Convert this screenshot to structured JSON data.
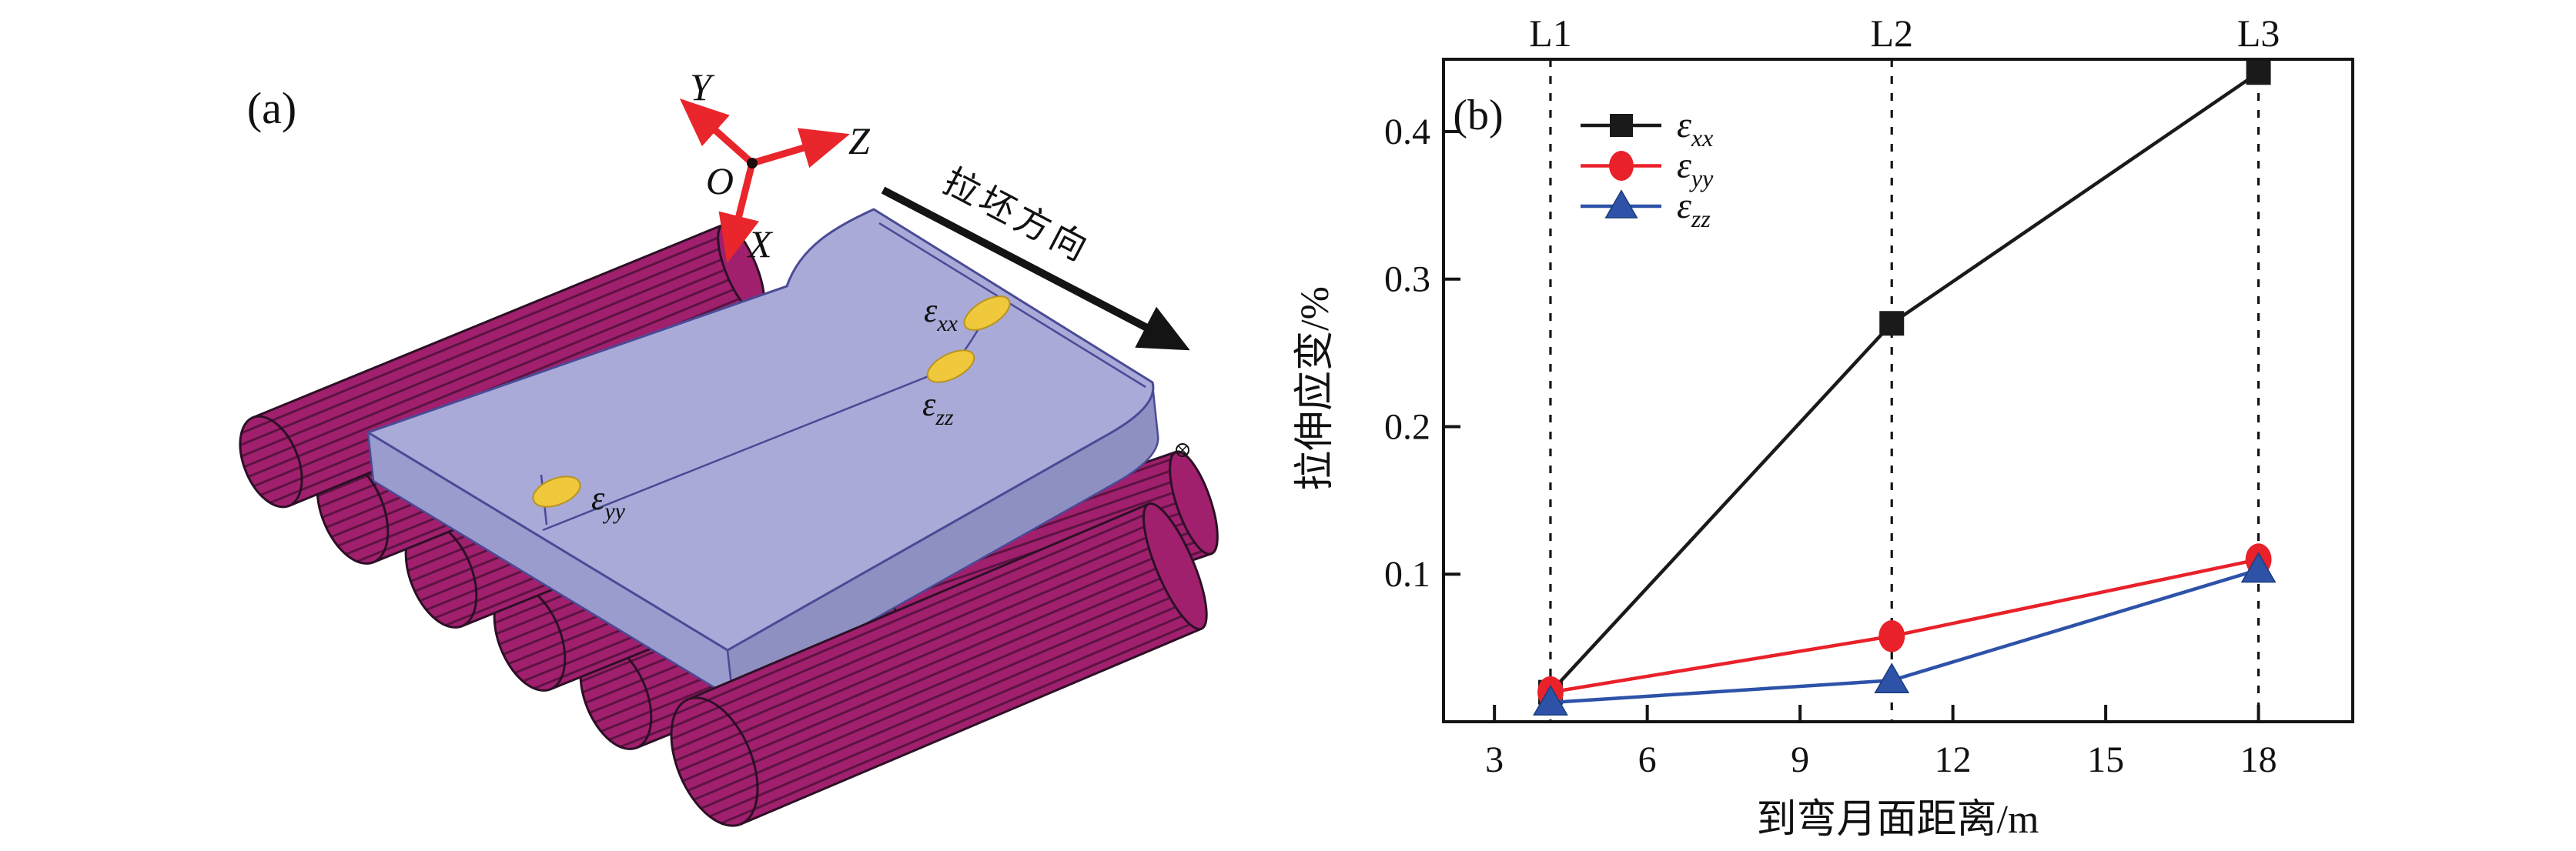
{
  "figure": {
    "panel_a_label": "(a)",
    "panel_b_label": "(b)"
  },
  "panel_a": {
    "origin_label": "O",
    "axis_x_label": "X",
    "axis_y_label": "Y",
    "axis_z_label": "Z",
    "casting_direction_label": "拉坯方向",
    "strain_xx": {
      "symbol": "ε",
      "sub": "xx"
    },
    "strain_yy": {
      "symbol": "ε",
      "sub": "yy"
    },
    "strain_zz": {
      "symbol": "ε",
      "sub": "zz"
    },
    "colors": {
      "roller_magenta": "#a0206e",
      "roller_edge": "#2d1026",
      "slab_lavender": "#a9aad8",
      "slab_edge_blue": "#4a4a96",
      "axis_red": "#e8262b",
      "spot_yellow": "#f0c83c",
      "arrow_black": "#141414"
    }
  },
  "chart_data": {
    "type": "line",
    "title": "",
    "xlabel": "到弯月面距离/m",
    "ylabel": "拉伸应变/%",
    "xlim": [
      2.0,
      19.85
    ],
    "ylim": [
      0,
      0.449
    ],
    "xticks": [
      3,
      6,
      9,
      12,
      15,
      18
    ],
    "yticks": [
      0.1,
      0.2,
      0.3,
      0.4
    ],
    "grid": false,
    "legend_position": "upper-left",
    "reference_lines": [
      {
        "label": "L1",
        "x": 4.1
      },
      {
        "label": "L2",
        "x": 10.8
      },
      {
        "label": "L3",
        "x": 18
      }
    ],
    "x": [
      4.1,
      10.8,
      18
    ],
    "series": [
      {
        "name": "epsilon-xx",
        "symbol": "ε",
        "sub": "xx",
        "marker": "square",
        "color": "#1a1a1a",
        "values": [
          0.02,
          0.27,
          0.44
        ]
      },
      {
        "name": "epsilon-yy",
        "symbol": "ε",
        "sub": "yy",
        "marker": "circle",
        "color": "#e8212a",
        "values": [
          0.02,
          0.058,
          0.11
        ]
      },
      {
        "name": "epsilon-zz",
        "symbol": "ε",
        "sub": "zz",
        "marker": "triangle",
        "color": "#2d52a8",
        "values": [
          0.013,
          0.028,
          0.103
        ]
      }
    ]
  }
}
